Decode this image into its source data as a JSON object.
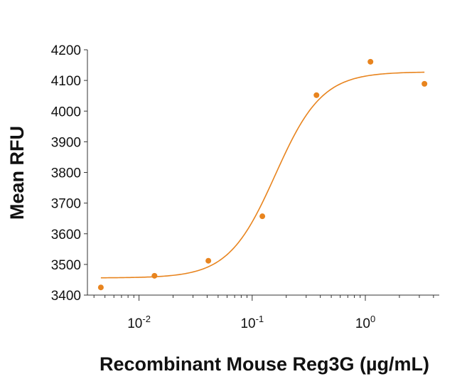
{
  "chart_data": {
    "type": "scatter",
    "xlabel": "Recombinant Mouse Reg3G (µg/mL)",
    "ylabel": "Mean RFU",
    "x_scale": "log",
    "xlim": [
      0.0035,
      4.5
    ],
    "ylim": [
      3400,
      4200
    ],
    "y_ticks": [
      3400,
      3500,
      3600,
      3700,
      3800,
      3900,
      4000,
      4100,
      4200
    ],
    "x_ticks": [
      {
        "value": 0.01,
        "base": "10",
        "exponent": "-2"
      },
      {
        "value": 0.1,
        "base": "10",
        "exponent": "-1"
      },
      {
        "value": 1,
        "base": "10",
        "exponent": "0"
      }
    ],
    "grid": false,
    "colors": {
      "series": "#E8841E",
      "axis": "#333333"
    },
    "series": [
      {
        "points": [
          {
            "x": 0.0046,
            "y": 3425
          },
          {
            "x": 0.0137,
            "y": 3463
          },
          {
            "x": 0.041,
            "y": 3512
          },
          {
            "x": 0.123,
            "y": 3657
          },
          {
            "x": 0.37,
            "y": 4052
          },
          {
            "x": 1.11,
            "y": 4161
          },
          {
            "x": 3.33,
            "y": 4089
          }
        ],
        "fit": {
          "type": "4PL",
          "bottom": 3456,
          "top": 4128,
          "ec50": 0.16,
          "hill": 2.1
        }
      }
    ]
  }
}
